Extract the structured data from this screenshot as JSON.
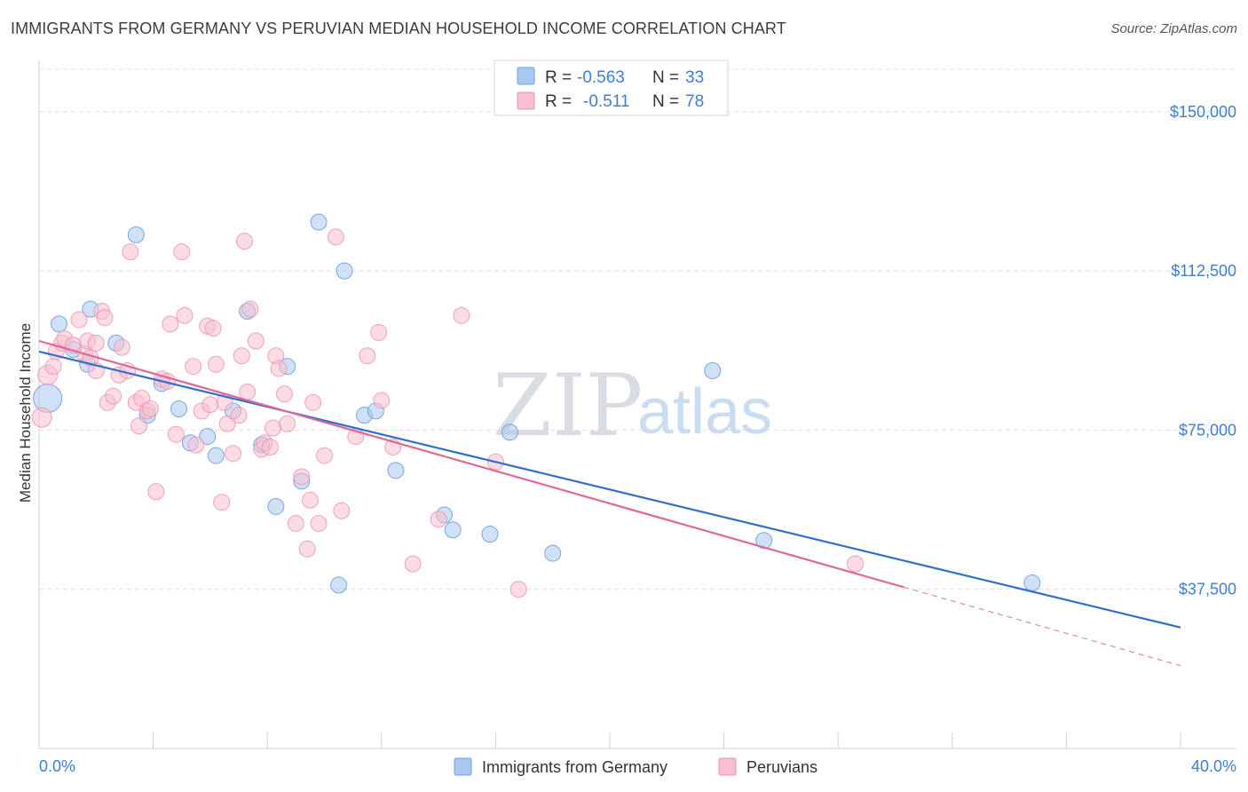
{
  "title": "IMMIGRANTS FROM GERMANY VS PERUVIAN MEDIAN HOUSEHOLD INCOME CORRELATION CHART",
  "source": "Source: ZipAtlas.com",
  "watermark": {
    "part1": "ZIP",
    "part2": "atlas"
  },
  "legend_top": [
    {
      "r_label": "R =",
      "r_value": "-0.563",
      "n_label": "N =",
      "n_value": "33",
      "color": "#a9c8f0",
      "stroke": "#6f9fe0"
    },
    {
      "r_label": "R =",
      "r_value": "-0.511",
      "n_label": "N =",
      "n_value": "78",
      "color": "#f7bfd0",
      "stroke": "#ee8fae"
    }
  ],
  "chart_data": {
    "type": "scatter",
    "ylabel": "Median Household Income",
    "xlim": [
      0,
      40
    ],
    "ylim": [
      0,
      160000
    ],
    "x_tick_labels": {
      "min": "0.0%",
      "max": "40.0%"
    },
    "y_ticks": [
      {
        "value": 37500,
        "label": "$37,500"
      },
      {
        "value": 75000,
        "label": "$75,000"
      },
      {
        "value": 112500,
        "label": "$112,500"
      },
      {
        "value": 150000,
        "label": "$150,000"
      }
    ],
    "grid": true,
    "series": [
      {
        "name": "Immigrants from Germany",
        "color": "#a9c8f0",
        "stroke": "#5e93dc",
        "line_color": "#2f6fcc",
        "trend": {
          "x0": 0,
          "y0": 93500,
          "x1": 40,
          "y1": 28500
        },
        "points": [
          [
            0.3,
            82500,
            16
          ],
          [
            0.7,
            100000,
            9
          ],
          [
            1.2,
            94000,
            9
          ],
          [
            1.8,
            103500,
            9
          ],
          [
            2.7,
            95500,
            9
          ],
          [
            3.4,
            121000,
            9
          ],
          [
            3.8,
            78500,
            9
          ],
          [
            4.3,
            86000,
            9
          ],
          [
            4.9,
            80000,
            9
          ],
          [
            5.3,
            72000,
            9
          ],
          [
            5.9,
            73500,
            9
          ],
          [
            6.2,
            69000,
            9
          ],
          [
            6.8,
            79500,
            9
          ],
          [
            7.3,
            103000,
            9
          ],
          [
            7.8,
            71500,
            9
          ],
          [
            8.3,
            57000,
            9
          ],
          [
            8.7,
            90000,
            9
          ],
          [
            9.2,
            63000,
            9
          ],
          [
            9.8,
            124000,
            9
          ],
          [
            10.5,
            38500,
            9
          ],
          [
            10.7,
            112500,
            9
          ],
          [
            11.4,
            78500,
            9
          ],
          [
            11.8,
            79500,
            9
          ],
          [
            12.5,
            65500,
            9
          ],
          [
            14.2,
            55000,
            9
          ],
          [
            14.5,
            51500,
            9
          ],
          [
            15.8,
            50500,
            9
          ],
          [
            16.5,
            74500,
            9
          ],
          [
            18.0,
            46000,
            9
          ],
          [
            23.6,
            89000,
            9
          ],
          [
            25.4,
            49000,
            9
          ],
          [
            34.8,
            39000,
            9
          ],
          [
            1.7,
            90500,
            9
          ]
        ]
      },
      {
        "name": "Peruvians",
        "color": "#f7bfd0",
        "stroke": "#ec8fad",
        "line_color": "#e06796",
        "trend": {
          "x0": 0,
          "y0": 96000,
          "x1": 30.3,
          "y1": 38000
        },
        "trend_dashed": {
          "x0": 30.3,
          "y0": 38000,
          "x1": 40,
          "y1": 19500
        },
        "points": [
          [
            0.1,
            78000,
            11
          ],
          [
            0.3,
            88000,
            11
          ],
          [
            0.5,
            90000,
            9
          ],
          [
            0.6,
            93500,
            9
          ],
          [
            0.8,
            95500,
            9
          ],
          [
            0.9,
            96500,
            9
          ],
          [
            1.2,
            95000,
            9
          ],
          [
            1.4,
            101000,
            9
          ],
          [
            1.6,
            93000,
            9
          ],
          [
            1.7,
            96000,
            9
          ],
          [
            1.8,
            92000,
            9
          ],
          [
            2.0,
            89000,
            9
          ],
          [
            2.2,
            103000,
            9
          ],
          [
            2.3,
            101500,
            9
          ],
          [
            2.4,
            81500,
            9
          ],
          [
            2.6,
            83000,
            9
          ],
          [
            2.8,
            88000,
            9
          ],
          [
            2.9,
            94500,
            9
          ],
          [
            3.1,
            89000,
            9
          ],
          [
            3.2,
            117000,
            9
          ],
          [
            3.4,
            81500,
            9
          ],
          [
            3.5,
            76000,
            9
          ],
          [
            3.6,
            82500,
            9
          ],
          [
            3.8,
            79500,
            9
          ],
          [
            3.9,
            80000,
            9
          ],
          [
            4.1,
            60500,
            9
          ],
          [
            4.3,
            87000,
            9
          ],
          [
            4.5,
            86500,
            9
          ],
          [
            4.6,
            100000,
            9
          ],
          [
            4.8,
            74000,
            9
          ],
          [
            5.0,
            117000,
            9
          ],
          [
            5.1,
            102000,
            9
          ],
          [
            5.4,
            90000,
            9
          ],
          [
            5.5,
            71500,
            9
          ],
          [
            5.7,
            79500,
            9
          ],
          [
            5.9,
            99500,
            9
          ],
          [
            6.0,
            81000,
            9
          ],
          [
            6.1,
            99000,
            9
          ],
          [
            6.2,
            90500,
            9
          ],
          [
            6.4,
            58000,
            9
          ],
          [
            6.6,
            76500,
            9
          ],
          [
            6.8,
            69500,
            9
          ],
          [
            7.0,
            78500,
            9
          ],
          [
            7.1,
            92500,
            9
          ],
          [
            7.2,
            119500,
            9
          ],
          [
            7.3,
            84000,
            9
          ],
          [
            7.4,
            103500,
            9
          ],
          [
            7.6,
            96000,
            9
          ],
          [
            7.8,
            70500,
            9
          ],
          [
            7.9,
            72000,
            9
          ],
          [
            8.1,
            71000,
            9
          ],
          [
            8.2,
            75500,
            9
          ],
          [
            8.3,
            92500,
            9
          ],
          [
            8.4,
            89500,
            9
          ],
          [
            8.6,
            83500,
            9
          ],
          [
            9.0,
            53000,
            9
          ],
          [
            9.2,
            64000,
            9
          ],
          [
            9.4,
            47000,
            9
          ],
          [
            9.5,
            58500,
            9
          ],
          [
            9.6,
            81500,
            9
          ],
          [
            9.8,
            53000,
            9
          ],
          [
            10.4,
            120500,
            9
          ],
          [
            10.6,
            56000,
            9
          ],
          [
            11.1,
            73500,
            9
          ],
          [
            11.5,
            92500,
            9
          ],
          [
            11.9,
            98000,
            9
          ],
          [
            12.0,
            82000,
            9
          ],
          [
            12.4,
            71000,
            9
          ],
          [
            13.1,
            43500,
            9
          ],
          [
            14.0,
            54000,
            9
          ],
          [
            14.8,
            102000,
            9
          ],
          [
            16.0,
            67500,
            9
          ],
          [
            16.8,
            37500,
            9
          ],
          [
            28.6,
            43500,
            9
          ],
          [
            2.0,
            95500,
            9
          ],
          [
            6.5,
            81500,
            9
          ],
          [
            8.7,
            76500,
            9
          ],
          [
            10.0,
            69000,
            9
          ]
        ]
      }
    ]
  }
}
